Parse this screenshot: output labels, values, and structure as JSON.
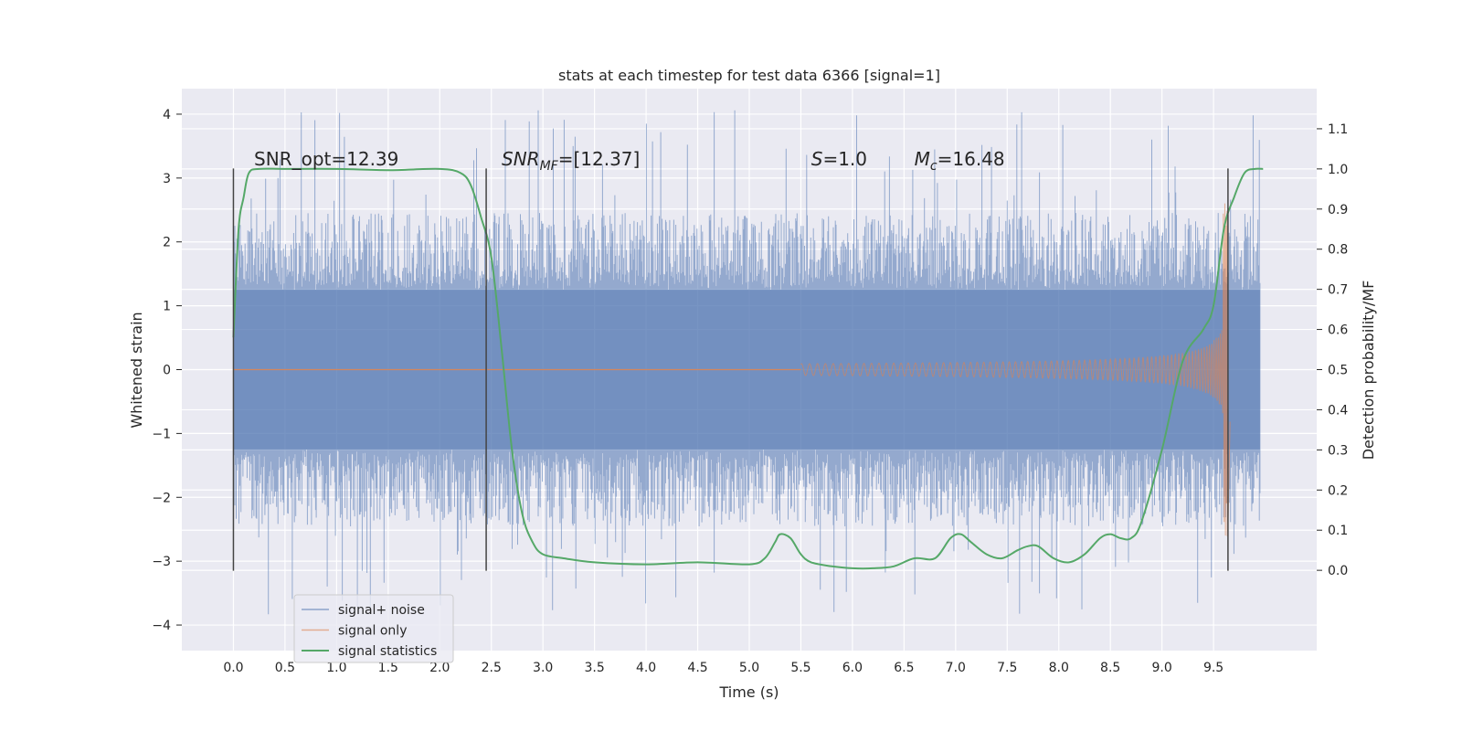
{
  "chart_data": {
    "type": "line",
    "title": "stats at each timestep for test data 6366 [signal=1]",
    "xlabel": "Time (s)",
    "ylabel": "Whitened strain",
    "y2label": "Detection probability/MF",
    "xlim": [
      -0.5,
      10.5
    ],
    "ylim": [
      -4.4,
      4.4
    ],
    "y2lim": [
      -0.2,
      1.2
    ],
    "xticks": [
      "0.0",
      "0.5",
      "1.0",
      "1.5",
      "2.0",
      "2.5",
      "3.0",
      "3.5",
      "4.0",
      "4.5",
      "5.0",
      "5.5",
      "6.0",
      "6.5",
      "7.0",
      "7.5",
      "8.0",
      "8.5",
      "9.0",
      "9.5"
    ],
    "yticks": [
      "4",
      "3",
      "2",
      "1",
      "0",
      "−1",
      "−2",
      "−3",
      "−4"
    ],
    "y2ticks": [
      "1.1",
      "1.0",
      "0.9",
      "0.8",
      "0.7",
      "0.6",
      "0.5",
      "0.4",
      "0.3",
      "0.2",
      "0.1",
      "0.0"
    ],
    "grid": true,
    "legend_position": "lower-left",
    "annotations": [
      {
        "text": "SNR_opt=12.39",
        "x": 0.2,
        "y": 3.2
      },
      {
        "text_main": "SNR",
        "text_sub": "MF",
        "text_tail": "=[12.37]",
        "x": 2.6,
        "y": 3.2
      },
      {
        "text_main": "S",
        "text_tail": "=1.0",
        "x": 5.6,
        "y": 3.2
      },
      {
        "text_main": "M",
        "text_sub": "c",
        "text_tail": "=16.48",
        "x": 6.6,
        "y": 3.2
      }
    ],
    "vlines": [
      0.0,
      2.45,
      9.64
    ],
    "series": [
      {
        "name": "signal+ noise",
        "color": "#4c72b0",
        "axis": "left",
        "time_range": [
          0.0,
          9.95
        ],
        "envelope": {
          "core": 1.25,
          "typical_peak": 2.4,
          "max_peak": 4.1,
          "min_peak": -3.9
        }
      },
      {
        "name": "signal only",
        "color": "#dd8452",
        "axis": "left",
        "chirp": {
          "start": 5.5,
          "merger": 9.64,
          "peak_amplitude": 2.7
        }
      },
      {
        "name": "signal statistics",
        "color": "#55a868",
        "axis": "right",
        "x": [
          0.0,
          0.05,
          0.1,
          0.15,
          0.25,
          0.5,
          1.0,
          1.5,
          2.0,
          2.2,
          2.3,
          2.4,
          2.5,
          2.6,
          2.7,
          2.8,
          2.9,
          3.0,
          3.2,
          3.5,
          4.0,
          4.5,
          5.0,
          5.15,
          5.25,
          5.3,
          5.4,
          5.5,
          5.6,
          5.8,
          6.0,
          6.2,
          6.4,
          6.6,
          6.8,
          6.95,
          7.05,
          7.15,
          7.3,
          7.45,
          7.6,
          7.7,
          7.8,
          7.95,
          8.1,
          8.25,
          8.4,
          8.5,
          8.6,
          8.7,
          8.8,
          9.0,
          9.2,
          9.4,
          9.5,
          9.6,
          9.7,
          9.8,
          9.9,
          9.98
        ],
        "values": [
          0.58,
          0.85,
          0.93,
          0.99,
          1.0,
          1.0,
          1.0,
          0.997,
          1.0,
          0.99,
          0.96,
          0.88,
          0.78,
          0.55,
          0.3,
          0.14,
          0.07,
          0.04,
          0.03,
          0.02,
          0.015,
          0.02,
          0.015,
          0.03,
          0.07,
          0.09,
          0.08,
          0.04,
          0.02,
          0.01,
          0.005,
          0.005,
          0.01,
          0.03,
          0.03,
          0.08,
          0.09,
          0.07,
          0.04,
          0.03,
          0.05,
          0.06,
          0.06,
          0.03,
          0.02,
          0.04,
          0.08,
          0.09,
          0.08,
          0.08,
          0.12,
          0.3,
          0.52,
          0.6,
          0.66,
          0.85,
          0.93,
          0.99,
          1.0,
          1.0
        ]
      }
    ]
  }
}
